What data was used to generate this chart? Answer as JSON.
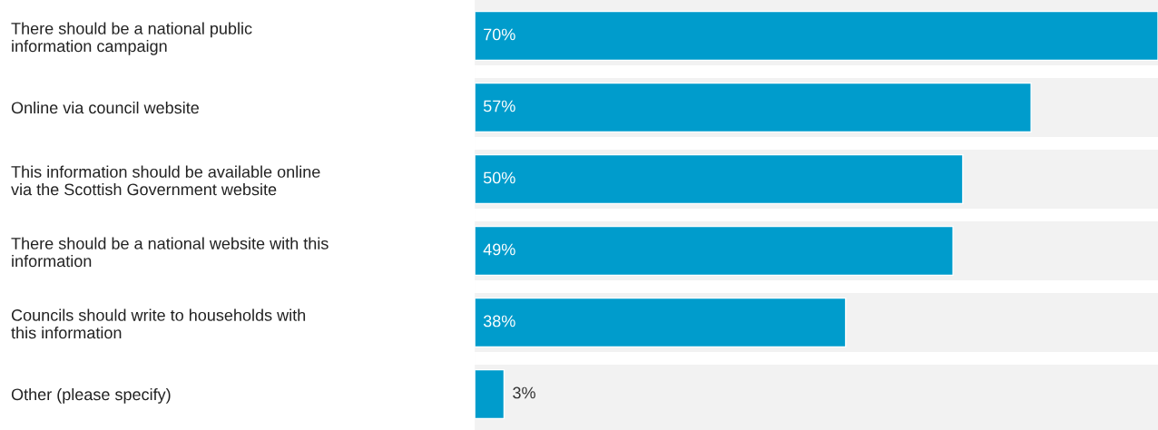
{
  "chart_data": {
    "type": "bar",
    "orientation": "horizontal",
    "categories": [
      "There should be a national public information campaign",
      "Online via council website",
      "This information should be available online via the Scottish Government website",
      "There should be a national website with this information",
      "Councils should write to households with this information",
      "Other (please specify)"
    ],
    "values": [
      70,
      57,
      50,
      49,
      38,
      3
    ],
    "value_labels": [
      "70%",
      "57%",
      "50%",
      "49%",
      "38%",
      "3%"
    ],
    "color": "#009ccc",
    "xlim": [
      0,
      70
    ],
    "tick_labels": "y",
    "grid": false,
    "legend": false
  }
}
